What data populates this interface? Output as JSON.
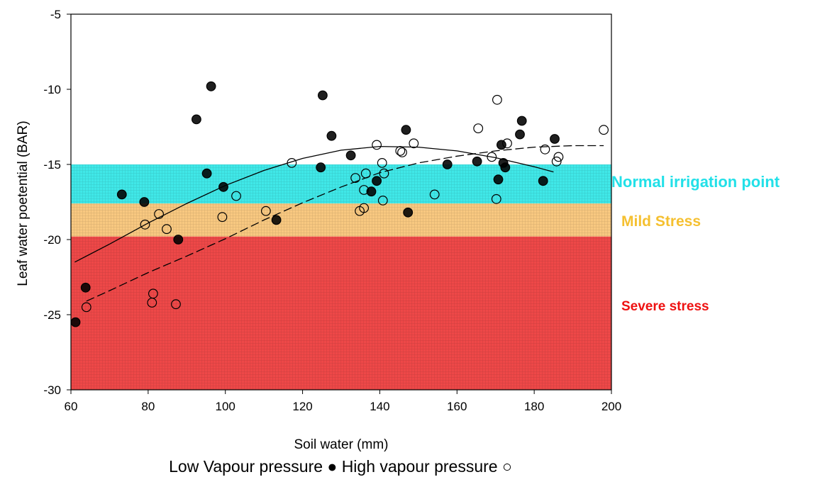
{
  "chart_data": {
    "type": "scatter",
    "xlabel": "Soil water (mm)",
    "ylabel": "Leaf water poetential (BAR)",
    "caption": "Low Vapour pressure ● High vapour pressure ○",
    "xlim": [
      60,
      200
    ],
    "ylim": [
      -30,
      -5
    ],
    "xticks": [
      60,
      80,
      100,
      120,
      140,
      160,
      180,
      200
    ],
    "yticks": [
      -5,
      -10,
      -15,
      -20,
      -25,
      -30
    ],
    "grid": false,
    "zones": [
      {
        "label": "Normal irrigation point",
        "y_top": -15,
        "y_bottom": -17.6,
        "color": "#40e8e8",
        "text_color": "#22e0e8"
      },
      {
        "label": "Mild Stress",
        "y_top": -17.6,
        "y_bottom": -19.8,
        "color": "#f8c880",
        "text_color": "#f5c030"
      },
      {
        "label": "Severe stress",
        "y_top": -19.8,
        "y_bottom": -30,
        "color": "#ee4848",
        "text_color": "#ee1111"
      }
    ],
    "series": [
      {
        "name": "Low Vapour pressure",
        "marker": "filled-circle",
        "points": [
          [
            61.2,
            -25.5
          ],
          [
            63.8,
            -23.2
          ],
          [
            73.2,
            -17
          ],
          [
            79,
            -17.5
          ],
          [
            87.8,
            -20
          ],
          [
            92.5,
            -12
          ],
          [
            95.2,
            -15.6
          ],
          [
            96.3,
            -9.8
          ],
          [
            99.5,
            -16.5
          ],
          [
            113.2,
            -18.7
          ],
          [
            124.7,
            -15.2
          ],
          [
            125.2,
            -10.4
          ],
          [
            127.5,
            -13.1
          ],
          [
            132.5,
            -14.4
          ],
          [
            137.8,
            -16.8
          ],
          [
            139.2,
            -16.1
          ],
          [
            146.8,
            -12.7
          ],
          [
            147.3,
            -18.2
          ],
          [
            157.5,
            -15
          ],
          [
            165.2,
            -14.8
          ],
          [
            170.7,
            -16
          ],
          [
            171.5,
            -13.7
          ],
          [
            172,
            -14.9
          ],
          [
            172.5,
            -15.2
          ],
          [
            176.3,
            -13
          ],
          [
            176.8,
            -12.1
          ],
          [
            182.3,
            -16.1
          ],
          [
            185.3,
            -13.3
          ]
        ]
      },
      {
        "name": "High vapour pressure",
        "marker": "open-circle",
        "points": [
          [
            64,
            -24.5
          ],
          [
            79.2,
            -19
          ],
          [
            81,
            -24.2
          ],
          [
            81.3,
            -23.6
          ],
          [
            82.8,
            -18.3
          ],
          [
            84.8,
            -19.3
          ],
          [
            87.2,
            -24.3
          ],
          [
            99.2,
            -18.5
          ],
          [
            102.8,
            -17.1
          ],
          [
            110.5,
            -18.1
          ],
          [
            117.2,
            -14.9
          ],
          [
            133.7,
            -15.9
          ],
          [
            134.8,
            -18.1
          ],
          [
            135.9,
            -16.7
          ],
          [
            135.9,
            -17.9
          ],
          [
            136.4,
            -15.6
          ],
          [
            139.2,
            -13.7
          ],
          [
            140.6,
            -14.9
          ],
          [
            140.8,
            -17.4
          ],
          [
            141.1,
            -15.6
          ],
          [
            145.3,
            -14.1
          ],
          [
            145.8,
            -14.2
          ],
          [
            148.8,
            -13.6
          ],
          [
            154.2,
            -17
          ],
          [
            165.5,
            -12.6
          ],
          [
            169,
            -14.5
          ],
          [
            170.4,
            -10.7
          ],
          [
            170.2,
            -17.3
          ],
          [
            173,
            -13.6
          ],
          [
            182.8,
            -14
          ],
          [
            185.8,
            -14.8
          ],
          [
            186.3,
            -14.5
          ],
          [
            198,
            -12.7
          ]
        ]
      },
      {
        "name": "Low Vapour pressure fit",
        "style": "solid-line",
        "x": [
          61,
          70,
          80,
          90,
          100,
          110,
          120,
          130,
          140,
          150,
          160,
          170,
          180,
          185
        ],
        "y": [
          -21.5,
          -20.3,
          -18.9,
          -17.6,
          -16.4,
          -15.4,
          -14.6,
          -14.05,
          -13.8,
          -13.85,
          -14.1,
          -14.55,
          -15.15,
          -15.5
        ]
      },
      {
        "name": "High vapour pressure fit",
        "style": "dashed-line",
        "x": [
          64,
          70,
          80,
          90,
          100,
          110,
          120,
          130,
          140,
          150,
          160,
          170,
          180,
          190,
          198
        ],
        "y": [
          -24.1,
          -23.4,
          -22.2,
          -21.1,
          -19.95,
          -18.7,
          -17.55,
          -16.5,
          -15.55,
          -14.9,
          -14.45,
          -14.1,
          -13.85,
          -13.75,
          -13.75
        ]
      }
    ]
  }
}
